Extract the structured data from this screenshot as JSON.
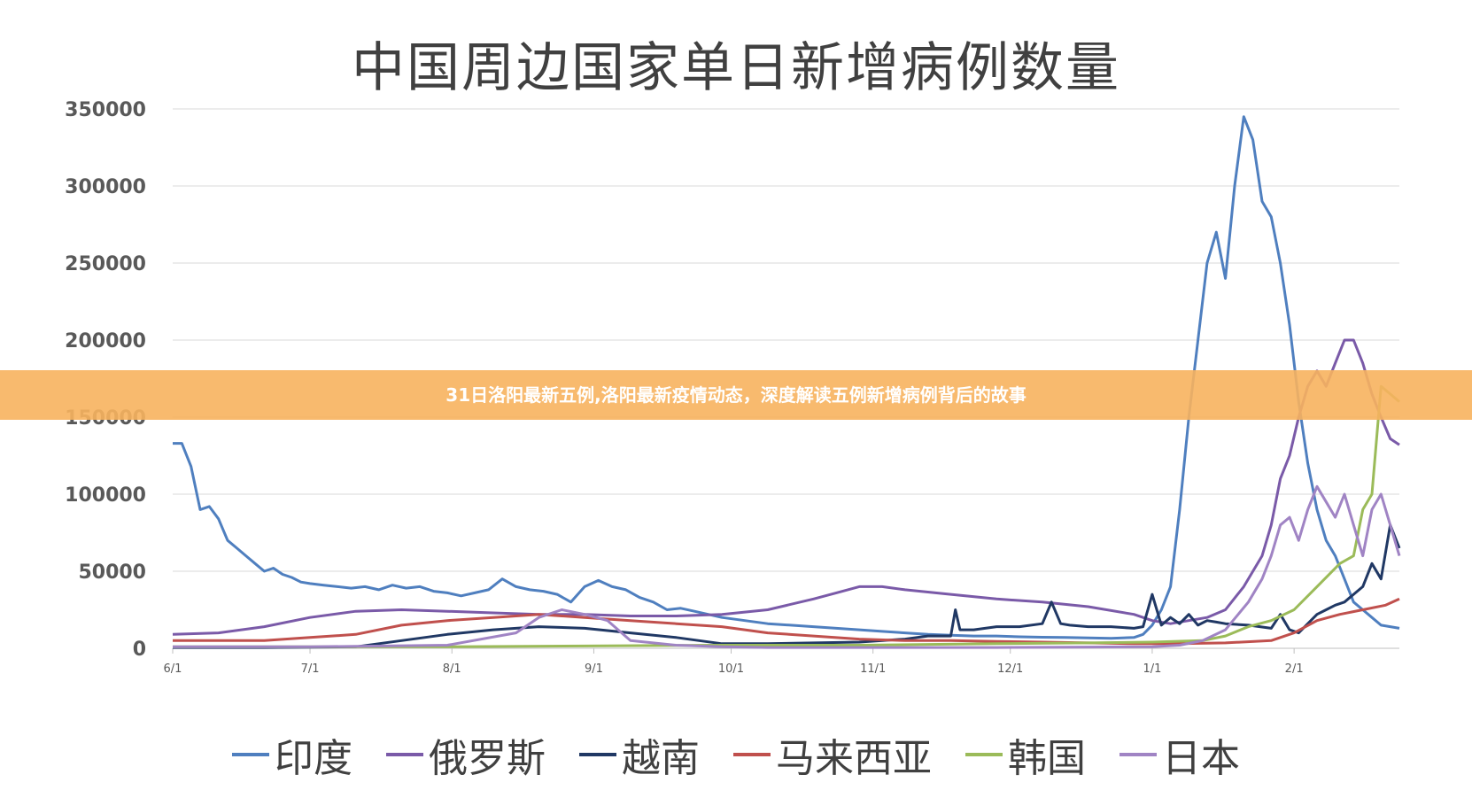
{
  "banner": {
    "text": "31日洛阳最新五例,洛阳最新疫情动态，深度解读五例新增病例背后的故事"
  },
  "chart_data": {
    "type": "line",
    "title": "中国周边国家单日新增病例数量",
    "xlabel": "",
    "ylabel": "",
    "ylim": [
      0,
      350000
    ],
    "yticks": [
      "0",
      "50000",
      "100000",
      "150000",
      "200000",
      "250000",
      "300000",
      "350000"
    ],
    "xticks": [
      "6/1",
      "7/1",
      "8/1",
      "9/1",
      "10/1",
      "11/1",
      "12/1",
      "1/1",
      "2/1"
    ],
    "xtick_days": [
      0,
      30,
      61,
      92,
      122,
      153,
      183,
      214,
      245
    ],
    "xlim_days": [
      0,
      268
    ],
    "grid": true,
    "legend_position": "bottom",
    "series": [
      {
        "name": "印度",
        "color": "#4f7fbf",
        "x": [
          0,
          2,
          4,
          6,
          8,
          10,
          12,
          14,
          16,
          18,
          20,
          22,
          24,
          26,
          28,
          30,
          33,
          36,
          39,
          42,
          45,
          48,
          51,
          54,
          57,
          60,
          63,
          66,
          69,
          72,
          75,
          78,
          81,
          84,
          87,
          90,
          93,
          96,
          99,
          102,
          105,
          108,
          111,
          114,
          117,
          120,
          125,
          130,
          135,
          140,
          145,
          150,
          155,
          160,
          165,
          170,
          175,
          180,
          185,
          190,
          195,
          200,
          205,
          210,
          212,
          214,
          216,
          218,
          220,
          222,
          224,
          226,
          228,
          230,
          232,
          234,
          236,
          238,
          240,
          242,
          244,
          246,
          248,
          250,
          252,
          254,
          256,
          258,
          260,
          262,
          264,
          266,
          268
        ],
        "y": [
          133000,
          133000,
          118000,
          90000,
          92000,
          84000,
          70000,
          65000,
          60000,
          55000,
          50000,
          52000,
          48000,
          46000,
          43000,
          42000,
          41000,
          40000,
          39000,
          40000,
          38000,
          41000,
          39000,
          40000,
          37000,
          36000,
          34000,
          36000,
          38000,
          45000,
          40000,
          38000,
          37000,
          35000,
          30000,
          40000,
          44000,
          40000,
          38000,
          33000,
          30000,
          25000,
          26000,
          24000,
          22000,
          20000,
          18000,
          16000,
          15000,
          14000,
          13000,
          12000,
          11000,
          10000,
          9000,
          8500,
          8000,
          8000,
          7500,
          7200,
          7000,
          6800,
          6500,
          7000,
          9000,
          15000,
          25000,
          40000,
          90000,
          150000,
          200000,
          250000,
          270000,
          240000,
          300000,
          345000,
          330000,
          290000,
          280000,
          250000,
          210000,
          160000,
          120000,
          90000,
          70000,
          60000,
          45000,
          30000,
          25000,
          20000,
          15000,
          14000,
          13000
        ]
      },
      {
        "name": "俄罗斯",
        "color": "#7a5aa8",
        "x": [
          0,
          10,
          20,
          30,
          40,
          50,
          60,
          70,
          80,
          90,
          100,
          110,
          120,
          130,
          140,
          145,
          150,
          155,
          160,
          170,
          180,
          190,
          200,
          210,
          214,
          218,
          222,
          226,
          230,
          234,
          238,
          240,
          242,
          244,
          246,
          248,
          250,
          252,
          254,
          256,
          258,
          260,
          262,
          264,
          266,
          268
        ],
        "y": [
          9000,
          10000,
          14000,
          20000,
          24000,
          25000,
          24000,
          23000,
          22000,
          22000,
          21000,
          21000,
          22000,
          25000,
          32000,
          36000,
          40000,
          40000,
          38000,
          35000,
          32000,
          30000,
          27000,
          22000,
          18000,
          16000,
          18000,
          20000,
          25000,
          40000,
          60000,
          80000,
          110000,
          125000,
          150000,
          170000,
          180000,
          170000,
          185000,
          200000,
          200000,
          185000,
          165000,
          150000,
          136000,
          132000
        ]
      },
      {
        "name": "越南",
        "color": "#203864",
        "x": [
          0,
          20,
          40,
          50,
          60,
          70,
          80,
          90,
          100,
          110,
          120,
          130,
          140,
          150,
          160,
          165,
          170,
          171,
          172,
          175,
          180,
          185,
          190,
          192,
          194,
          196,
          200,
          205,
          210,
          212,
          214,
          216,
          218,
          220,
          222,
          224,
          226,
          228,
          230,
          235,
          240,
          242,
          244,
          246,
          248,
          250,
          252,
          254,
          256,
          258,
          260,
          262,
          264,
          266,
          268
        ],
        "y": [
          500,
          500,
          1000,
          5000,
          9000,
          12000,
          14000,
          13000,
          10000,
          7000,
          3000,
          3000,
          3500,
          4000,
          6000,
          8000,
          8000,
          25000,
          12000,
          12000,
          14000,
          14000,
          16000,
          30000,
          16000,
          15000,
          14000,
          14000,
          13000,
          14000,
          35000,
          15000,
          20000,
          16000,
          22000,
          15000,
          18000,
          17000,
          16000,
          15000,
          13000,
          22000,
          12000,
          10000,
          16000,
          22000,
          25000,
          28000,
          30000,
          35000,
          40000,
          55000,
          45000,
          80000,
          65000
        ]
      },
      {
        "name": "马来西亚",
        "color": "#c0504d",
        "x": [
          0,
          10,
          20,
          30,
          40,
          50,
          60,
          70,
          80,
          90,
          100,
          110,
          120,
          130,
          140,
          150,
          160,
          170,
          180,
          190,
          200,
          210,
          220,
          230,
          240,
          245,
          250,
          255,
          260,
          265,
          268
        ],
        "y": [
          5000,
          5000,
          5000,
          7000,
          9000,
          15000,
          18000,
          20000,
          22000,
          20000,
          18000,
          16000,
          14000,
          10000,
          8000,
          6000,
          5000,
          5000,
          4500,
          4000,
          3500,
          3000,
          3000,
          3500,
          5000,
          10000,
          18000,
          22000,
          25000,
          28000,
          32000
        ]
      },
      {
        "name": "韩国",
        "color": "#9bbb59",
        "x": [
          0,
          30,
          60,
          90,
          120,
          150,
          180,
          200,
          214,
          225,
          230,
          235,
          240,
          245,
          250,
          255,
          258,
          260,
          262,
          264,
          266,
          268
        ],
        "y": [
          1000,
          1000,
          1000,
          1500,
          2000,
          2000,
          3000,
          3500,
          4000,
          5000,
          8000,
          14000,
          18000,
          25000,
          40000,
          55000,
          60000,
          90000,
          100000,
          170000,
          165000,
          160000
        ]
      },
      {
        "name": "日本",
        "color": "#a084c4",
        "x": [
          0,
          30,
          60,
          75,
          80,
          85,
          90,
          95,
          100,
          110,
          120,
          130,
          150,
          180,
          200,
          214,
          220,
          225,
          230,
          235,
          238,
          240,
          242,
          244,
          246,
          248,
          250,
          252,
          254,
          256,
          258,
          260,
          262,
          264,
          266,
          268
        ],
        "y": [
          1000,
          1000,
          2000,
          10000,
          20000,
          25000,
          22000,
          18000,
          5000,
          2000,
          1000,
          500,
          500,
          500,
          800,
          1000,
          2000,
          5000,
          12000,
          30000,
          45000,
          60000,
          80000,
          85000,
          70000,
          90000,
          105000,
          95000,
          85000,
          100000,
          80000,
          60000,
          90000,
          100000,
          80000,
          60000
        ]
      }
    ]
  }
}
